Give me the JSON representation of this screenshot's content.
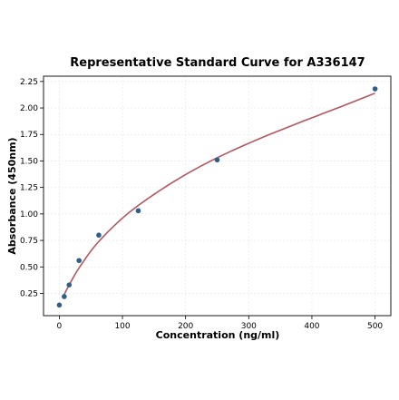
{
  "chart_data": {
    "type": "scatter",
    "title": "Representative Standard Curve for A336147",
    "xlabel": "Concentration (ng/ml)",
    "ylabel": "Absorbance (450nm)",
    "xlim": [
      -25,
      525
    ],
    "ylim": [
      0.04,
      2.3
    ],
    "x_ticks": [
      0,
      100,
      200,
      300,
      400,
      500
    ],
    "y_ticks": [
      0.25,
      0.5,
      0.75,
      1.0,
      1.25,
      1.5,
      1.75,
      2.0,
      2.25
    ],
    "x_tick_labels": [
      "0",
      "100",
      "200",
      "300",
      "400",
      "500"
    ],
    "y_tick_labels": [
      "0.25",
      "0.50",
      "0.75",
      "1.00",
      "1.25",
      "1.50",
      "1.75",
      "2.00",
      "2.25"
    ],
    "grid": true,
    "points": {
      "x": [
        0,
        7.8,
        15.6,
        31.25,
        62.5,
        125,
        250,
        500
      ],
      "y": [
        0.14,
        0.22,
        0.33,
        0.56,
        0.8,
        1.03,
        1.51,
        2.18
      ]
    },
    "fit_curve": {
      "x": [
        7,
        15.6,
        31.25,
        62.5,
        125,
        250,
        500
      ],
      "y": [
        0.23,
        0.33,
        0.49,
        0.74,
        1.08,
        1.53,
        2.14
      ]
    },
    "colors": {
      "points": "#2e5f8a",
      "fit_curve": "#b5565f"
    }
  }
}
